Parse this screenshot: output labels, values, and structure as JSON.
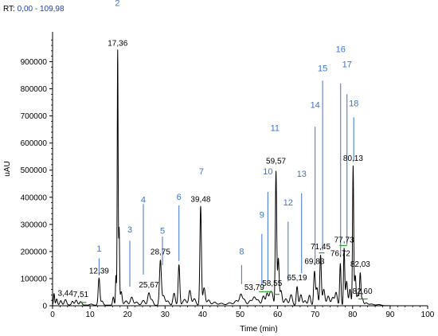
{
  "header": {
    "rt_label": "RT:",
    "rt_range": "0,00 - 109,98"
  },
  "chart_data": {
    "type": "line",
    "xlabel": "Time (min)",
    "ylabel": "uAU",
    "xlim": [
      0,
      100
    ],
    "ylim": [
      0,
      1010000
    ],
    "x_ticks": [
      0,
      10,
      20,
      30,
      40,
      50,
      60,
      70,
      80,
      90,
      100
    ],
    "y_ticks": [
      0,
      100000,
      200000,
      300000,
      400000,
      500000,
      600000,
      700000,
      800000,
      900000
    ],
    "peak_labels": [
      {
        "text": "3,44",
        "x": 3.44,
        "y": 28000
      },
      {
        "text": "7,51",
        "x": 7.51,
        "y": 24000
      },
      {
        "text": "12,39",
        "x": 12.39,
        "y": 110000
      },
      {
        "text": "17,36",
        "x": 17.36,
        "y": 950000
      },
      {
        "text": "25,67",
        "x": 25.67,
        "y": 58000
      },
      {
        "text": "28,75",
        "x": 28.75,
        "y": 180000
      },
      {
        "text": "39,48",
        "x": 39.48,
        "y": 375000
      },
      {
        "text": "53,79",
        "x": 53.79,
        "y": 50000
      },
      {
        "text": "58,55",
        "x": 58.55,
        "y": 65000
      },
      {
        "text": "59,57",
        "x": 59.57,
        "y": 515000
      },
      {
        "text": "65,19",
        "x": 65.19,
        "y": 85000
      },
      {
        "text": "69,83",
        "x": 69.83,
        "y": 145000
      },
      {
        "text": "71,45",
        "x": 71.45,
        "y": 200000
      },
      {
        "text": "76,72",
        "x": 76.72,
        "y": 175000
      },
      {
        "text": "77,73",
        "x": 77.73,
        "y": 225000
      },
      {
        "text": "80,13",
        "x": 80.13,
        "y": 525000
      },
      {
        "text": "82,03",
        "x": 82.03,
        "y": 135000
      },
      {
        "text": "82,60",
        "x": 82.6,
        "y": 35000
      }
    ],
    "annotations": [
      {
        "text": "1",
        "x": 12.4,
        "y_line_top": 175000,
        "y_line_bottom": 112000,
        "y_text": 200000
      },
      {
        "text": "2",
        "x": 17.3,
        "y_line_top": null,
        "y_line_bottom": null,
        "y_text": 1105000
      },
      {
        "text": "3",
        "x": 20.6,
        "y_line_top": 240000,
        "y_line_bottom": 70000,
        "y_text": 270000
      },
      {
        "text": "4",
        "x": 24.2,
        "y_line_top": 375000,
        "y_line_bottom": 115000,
        "y_text": 380000
      },
      {
        "text": "5",
        "x": 29.3,
        "y_line_top": 255000,
        "y_line_bottom": 150000,
        "y_text": 265000
      },
      {
        "text": "6",
        "x": 33.7,
        "y_line_top": 370000,
        "y_line_bottom": 165000,
        "y_text": 390000
      },
      {
        "text": "7",
        "x": 39.7,
        "y_line_top": null,
        "y_line_bottom": null,
        "y_text": 485000
      },
      {
        "text": "8",
        "x": 50.4,
        "y_line_top": 150000,
        "y_line_bottom": 80000,
        "y_text": 190000
      },
      {
        "text": "9",
        "x": 55.8,
        "y_line_top": 265000,
        "y_line_bottom": 75000,
        "y_text": 325000
      },
      {
        "text": "10",
        "x": 57.4,
        "y_line_top": 420000,
        "y_line_bottom": 90000,
        "y_text": 485000
      },
      {
        "text": "11",
        "x": 59.3,
        "y_line_top": null,
        "y_line_bottom": null,
        "y_text": 645000
      },
      {
        "text": "12",
        "x": 62.8,
        "y_line_top": 310000,
        "y_line_bottom": 90000,
        "y_text": 370000
      },
      {
        "text": "13",
        "x": 66.4,
        "y_line_top": 415000,
        "y_line_bottom": 120000,
        "y_text": 475000
      },
      {
        "text": "14",
        "x": 70.0,
        "y_line_top": 660000,
        "y_line_bottom": 150000,
        "y_text": 730000
      },
      {
        "text": "15",
        "x": 72.0,
        "y_line_top": 830000,
        "y_line_bottom": 205000,
        "y_text": 865000
      },
      {
        "text": "16",
        "x": 76.8,
        "y_line_top": 820000,
        "y_line_bottom": 180000,
        "y_text": 935000
      },
      {
        "text": "17",
        "x": 78.5,
        "y_line_top": 780000,
        "y_line_bottom": 225000,
        "y_text": 880000
      },
      {
        "text": "18",
        "x": 80.3,
        "y_line_top": 695000,
        "y_line_bottom": 535000,
        "y_text": 735000
      }
    ],
    "baseline_segments": [
      [
        7.0,
        12000,
        9.0,
        12000
      ],
      [
        55.0,
        52000,
        58.5,
        52000
      ],
      [
        59.0,
        42000,
        60.5,
        42000
      ],
      [
        71.0,
        195000,
        72.5,
        195000
      ],
      [
        76.5,
        222000,
        78.5,
        222000
      ],
      [
        81.5,
        25000,
        84.0,
        25000
      ]
    ],
    "peaks": [
      [
        0.4,
        42000,
        0.15
      ],
      [
        1.1,
        22000,
        0.2
      ],
      [
        2.2,
        16000,
        0.25
      ],
      [
        3.44,
        20000,
        0.3
      ],
      [
        5.3,
        14000,
        0.25
      ],
      [
        6.3,
        18000,
        0.3
      ],
      [
        7.51,
        13000,
        0.3
      ],
      [
        10.3,
        4000,
        0.35
      ],
      [
        12.39,
        100000,
        0.22
      ],
      [
        13.2,
        15000,
        0.3
      ],
      [
        16.2,
        30000,
        0.2
      ],
      [
        16.9,
        110000,
        0.12
      ],
      [
        17.36,
        940000,
        0.12
      ],
      [
        17.75,
        280000,
        0.12
      ],
      [
        18.3,
        50000,
        0.25
      ],
      [
        19.6,
        16000,
        0.4
      ],
      [
        21.1,
        30000,
        0.35
      ],
      [
        22.4,
        12000,
        0.4
      ],
      [
        24.2,
        18000,
        0.4
      ],
      [
        25.67,
        45000,
        0.3
      ],
      [
        26.5,
        20000,
        0.35
      ],
      [
        28.75,
        165000,
        0.25
      ],
      [
        29.6,
        35000,
        0.35
      ],
      [
        30.7,
        16000,
        0.4
      ],
      [
        32.4,
        45000,
        0.3
      ],
      [
        33.7,
        150000,
        0.22
      ],
      [
        35.2,
        22000,
        0.45
      ],
      [
        36.6,
        55000,
        0.3
      ],
      [
        37.8,
        25000,
        0.4
      ],
      [
        39.48,
        365000,
        0.2
      ],
      [
        40.4,
        65000,
        0.3
      ],
      [
        41.6,
        20000,
        0.4
      ],
      [
        43.2,
        12000,
        0.5
      ],
      [
        45.0,
        8000,
        0.6
      ],
      [
        47.2,
        10000,
        0.6
      ],
      [
        49.0,
        18000,
        0.5
      ],
      [
        50.2,
        40000,
        0.35
      ],
      [
        51.1,
        22000,
        0.4
      ],
      [
        52.7,
        18000,
        0.45
      ],
      [
        53.79,
        30000,
        0.4
      ],
      [
        54.8,
        20000,
        0.4
      ],
      [
        56.2,
        35000,
        0.35
      ],
      [
        57.2,
        45000,
        0.3
      ],
      [
        58.0,
        40000,
        0.3
      ],
      [
        58.55,
        40000,
        0.3
      ],
      [
        59.57,
        495000,
        0.18
      ],
      [
        60.2,
        170000,
        0.2
      ],
      [
        60.9,
        55000,
        0.3
      ],
      [
        62.2,
        25000,
        0.4
      ],
      [
        63.6,
        40000,
        0.35
      ],
      [
        65.19,
        70000,
        0.22
      ],
      [
        66.2,
        40000,
        0.3
      ],
      [
        67.3,
        18000,
        0.35
      ],
      [
        68.5,
        38000,
        0.3
      ],
      [
        69.83,
        125000,
        0.22
      ],
      [
        70.5,
        65000,
        0.25
      ],
      [
        71.45,
        185000,
        0.2
      ],
      [
        72.3,
        60000,
        0.3
      ],
      [
        73.5,
        35000,
        0.35
      ],
      [
        74.7,
        30000,
        0.35
      ],
      [
        75.6,
        48000,
        0.3
      ],
      [
        76.72,
        155000,
        0.18
      ],
      [
        77.73,
        210000,
        0.16
      ],
      [
        78.4,
        90000,
        0.25
      ],
      [
        79.3,
        60000,
        0.25
      ],
      [
        80.13,
        515000,
        0.15
      ],
      [
        80.7,
        110000,
        0.2
      ],
      [
        81.4,
        40000,
        0.25
      ],
      [
        82.03,
        118000,
        0.18
      ],
      [
        82.6,
        25000,
        0.25
      ],
      [
        83.6,
        10000,
        0.4
      ],
      [
        85.0,
        6000,
        0.6
      ],
      [
        87.0,
        4000,
        0.6
      ]
    ],
    "colors": {
      "trace": "#000000",
      "annotation": "#3c72c8",
      "header_range": "#1f3fb5",
      "baseline_marker": "#22a020"
    },
    "grid": false
  }
}
